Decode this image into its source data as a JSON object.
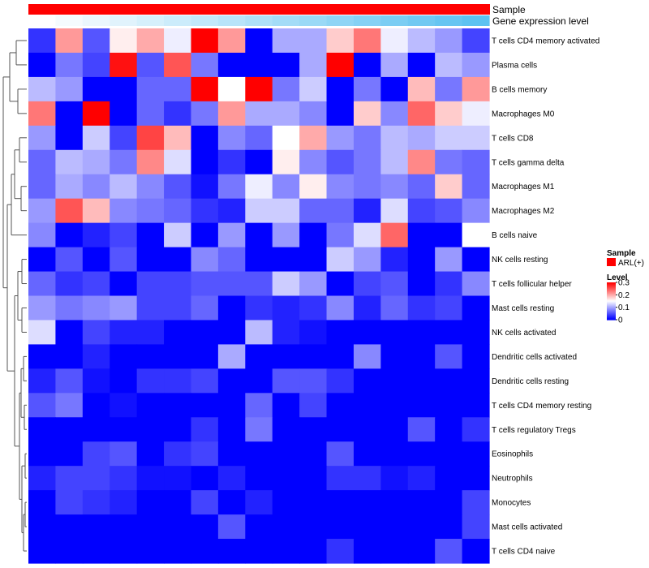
{
  "chart_data": {
    "type": "heatmap",
    "annotations": [
      {
        "name": "Sample",
        "label": "Sample"
      },
      {
        "name": "Gene expression level",
        "label": "Gene expression level",
        "values": [
          0.0,
          0.06,
          0.12,
          0.18,
          0.24,
          0.3,
          0.36,
          0.42,
          0.48,
          0.54,
          0.6,
          0.66,
          0.72,
          0.78,
          0.84,
          0.9,
          0.96
        ]
      }
    ],
    "rows": [
      "T cells CD4 memory activated",
      "Plasma cells",
      "B cells memory",
      "Macrophages M0",
      "T cells CD8",
      "T cells gamma delta",
      "Macrophages M1",
      "Macrophages M2",
      "B cells naive",
      "NK cells resting",
      "T cells follicular helper",
      "Mast cells resting",
      "NK cells activated",
      "Dendritic cells activated",
      "Dendritic cells resting",
      "T cells CD4 memory resting",
      "T cells regulatory  Tregs",
      "Eosinophils",
      "Neutrophils",
      "Monocytes",
      "Mast cells activated",
      "T cells CD4 naive"
    ],
    "n_columns": 17,
    "values": [
      [
        0.03,
        0.21,
        0.05,
        0.16,
        0.2,
        0.14,
        0.3,
        0.21,
        0.0,
        0.1,
        0.1,
        0.18,
        0.23,
        0.14,
        0.11,
        0.09,
        0.04
      ],
      [
        0.0,
        0.07,
        0.04,
        0.29,
        0.05,
        0.25,
        0.07,
        0.0,
        0.0,
        0.0,
        0.1,
        0.3,
        0.0,
        0.1,
        0.0,
        0.11,
        0.09
      ],
      [
        0.11,
        0.09,
        0.0,
        0.0,
        0.06,
        0.06,
        0.3,
        0.15,
        0.3,
        0.07,
        0.12,
        0.0,
        0.07,
        0.0,
        0.19,
        0.07,
        0.21
      ],
      [
        0.23,
        0.0,
        0.3,
        0.0,
        0.06,
        0.03,
        0.07,
        0.21,
        0.1,
        0.1,
        0.08,
        0.0,
        0.18,
        0.08,
        0.24,
        0.18,
        0.14
      ],
      [
        0.09,
        0.0,
        0.12,
        0.04,
        0.26,
        0.19,
        0.0,
        0.08,
        0.06,
        0.15,
        0.2,
        0.09,
        0.07,
        0.11,
        0.1,
        0.12,
        0.12
      ],
      [
        0.06,
        0.11,
        0.1,
        0.07,
        0.22,
        0.13,
        0.0,
        0.03,
        0.0,
        0.16,
        0.08,
        0.05,
        0.07,
        0.11,
        0.22,
        0.07,
        0.06
      ],
      [
        0.06,
        0.1,
        0.08,
        0.11,
        0.08,
        0.05,
        0.01,
        0.07,
        0.14,
        0.08,
        0.16,
        0.08,
        0.07,
        0.08,
        0.06,
        0.18,
        0.06
      ],
      [
        0.09,
        0.25,
        0.19,
        0.08,
        0.07,
        0.06,
        0.03,
        0.02,
        0.12,
        0.12,
        0.06,
        0.06,
        0.02,
        0.13,
        0.04,
        0.05,
        0.08
      ],
      [
        0.08,
        0.0,
        0.02,
        0.04,
        0.0,
        0.12,
        0.0,
        0.09,
        0.0,
        0.09,
        0.0,
        0.07,
        0.13,
        0.24,
        0.0,
        0.0,
        0.15
      ],
      [
        0.0,
        0.05,
        0.0,
        0.05,
        0.0,
        0.0,
        0.08,
        0.06,
        0.0,
        0.0,
        0.0,
        0.12,
        0.09,
        0.02,
        0.0,
        0.09,
        0.0
      ],
      [
        0.06,
        0.03,
        0.04,
        0.0,
        0.04,
        0.04,
        0.05,
        0.05,
        0.05,
        0.12,
        0.09,
        0.0,
        0.04,
        0.05,
        0.0,
        0.03,
        0.08
      ],
      [
        0.09,
        0.07,
        0.08,
        0.09,
        0.04,
        0.04,
        0.06,
        0.0,
        0.03,
        0.02,
        0.03,
        0.08,
        0.02,
        0.06,
        0.03,
        0.04,
        0.0
      ],
      [
        0.13,
        0.0,
        0.04,
        0.02,
        0.02,
        0.0,
        0.0,
        0.0,
        0.11,
        0.02,
        0.01,
        0.0,
        0.0,
        0.0,
        0.0,
        0.0,
        0.0
      ],
      [
        0.0,
        0.0,
        0.02,
        0.0,
        0.0,
        0.0,
        0.0,
        0.1,
        0.0,
        0.0,
        0.0,
        0.0,
        0.08,
        0.0,
        0.0,
        0.05,
        0.0
      ],
      [
        0.02,
        0.05,
        0.01,
        0.0,
        0.03,
        0.03,
        0.04,
        0.0,
        0.0,
        0.05,
        0.05,
        0.03,
        0.0,
        0.0,
        0.0,
        0.0,
        0.0
      ],
      [
        0.05,
        0.07,
        0.0,
        0.01,
        0.0,
        0.0,
        0.0,
        0.0,
        0.06,
        0.0,
        0.04,
        0.0,
        0.0,
        0.0,
        0.0,
        0.0,
        0.0
      ],
      [
        0.0,
        0.0,
        0.0,
        0.0,
        0.0,
        0.0,
        0.03,
        0.0,
        0.07,
        0.0,
        0.0,
        0.0,
        0.0,
        0.0,
        0.05,
        0.0,
        0.03
      ],
      [
        0.0,
        0.0,
        0.04,
        0.05,
        0.0,
        0.03,
        0.04,
        0.0,
        0.0,
        0.0,
        0.0,
        0.05,
        0.0,
        0.0,
        0.0,
        0.0,
        0.0
      ],
      [
        0.02,
        0.04,
        0.04,
        0.03,
        0.01,
        0.01,
        0.0,
        0.02,
        0.0,
        0.0,
        0.0,
        0.03,
        0.03,
        0.01,
        0.02,
        0.0,
        0.0
      ],
      [
        0.0,
        0.04,
        0.03,
        0.02,
        0.0,
        0.0,
        0.04,
        0.0,
        0.02,
        0.0,
        0.0,
        0.0,
        0.0,
        0.0,
        0.0,
        0.0,
        0.04
      ],
      [
        0.0,
        0.0,
        0.0,
        0.0,
        0.0,
        0.0,
        0.0,
        0.05,
        0.0,
        0.0,
        0.0,
        0.0,
        0.0,
        0.0,
        0.0,
        0.0,
        0.04
      ],
      [
        0.0,
        0.0,
        0.0,
        0.0,
        0.0,
        0.0,
        0.0,
        0.0,
        0.0,
        0.0,
        0.0,
        0.03,
        0.0,
        0.0,
        0.0,
        0.05,
        0.0
      ]
    ],
    "color_scale": {
      "min": 0,
      "max": 0.3,
      "low": "#0000ff",
      "mid": "#ffffff",
      "high": "#ff0000"
    },
    "legend": {
      "placement": "right",
      "sample_title": "Sample",
      "sample_entry": "ARL(+)",
      "sample_color": "#ff0000",
      "level_title": "Level",
      "level_ticks": [
        "0.3",
        "0.2",
        "0.1",
        "0"
      ],
      "level_values": [
        0.3,
        0.2,
        0.1,
        0
      ]
    },
    "annotation_colors": {
      "sample": "#ff0000",
      "gene_low": "#ffffff",
      "gene_high": "#56bff0"
    },
    "dendrogram": {
      "side": "left"
    }
  }
}
